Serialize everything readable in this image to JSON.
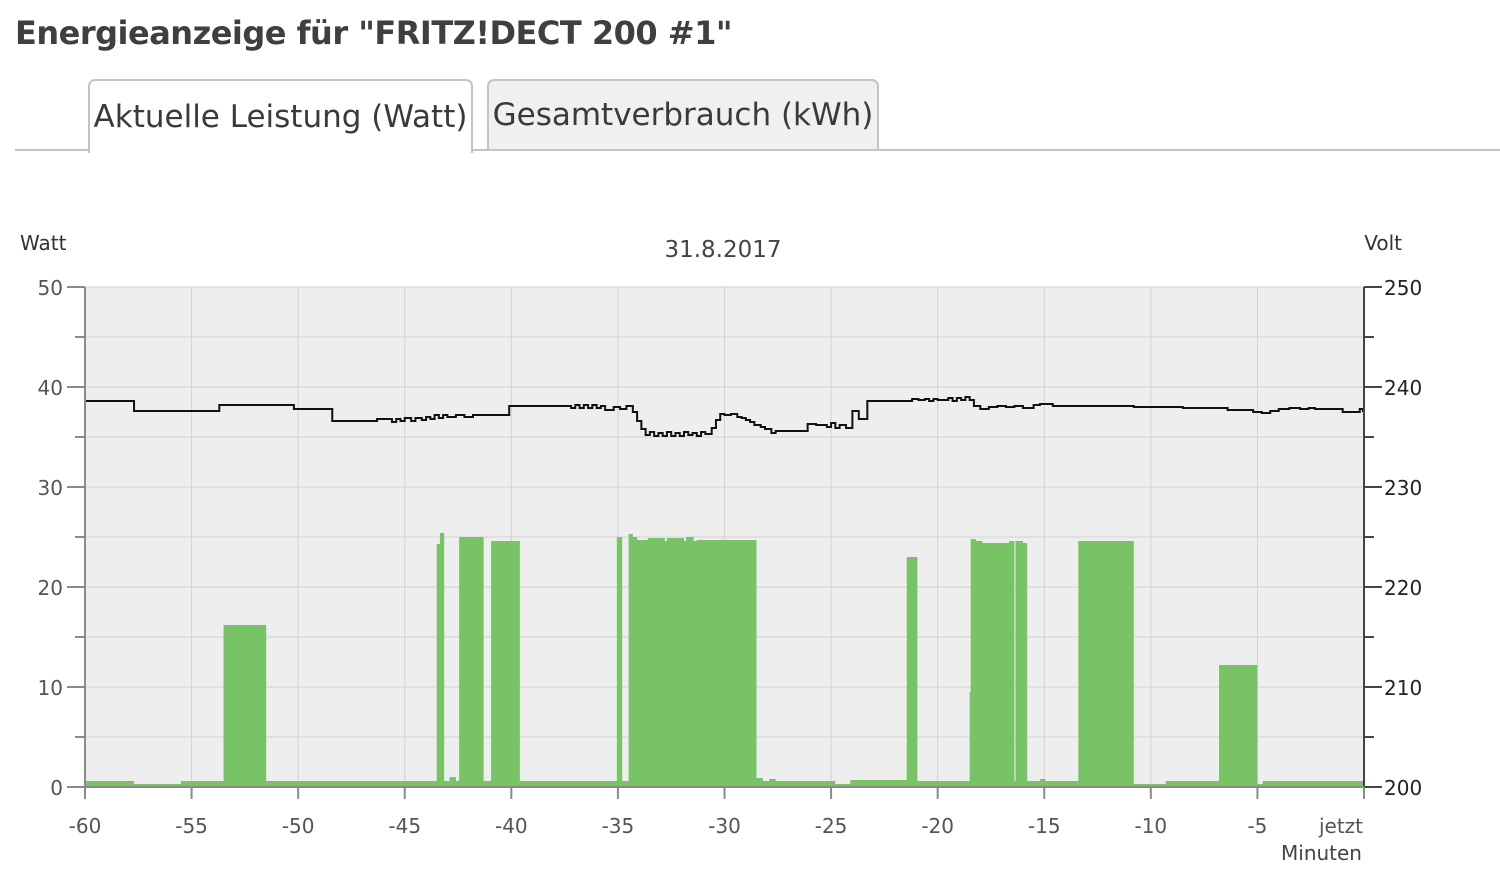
{
  "page": {
    "title": "Energieanzeige für \"FRITZ!DECT 200 #1\""
  },
  "tabs": [
    {
      "label": "Aktuelle Leistung (Watt)",
      "active": true
    },
    {
      "label": "Gesamtverbrauch (kWh)",
      "active": false
    }
  ],
  "colors": {
    "power_fill": "#77c366",
    "voltage_line": "#111111",
    "plot_bg": "#eeeeee",
    "grid": "#d2d2d2",
    "axis": "#8a8a8a"
  },
  "chart_data": {
    "type": "area",
    "title": "31.8.2017",
    "ylabel": "Watt",
    "y2label": "Volt",
    "xlabel": "Minuten",
    "xlim": [
      -60,
      0
    ],
    "ylim": [
      0,
      50
    ],
    "y2lim": [
      200,
      250
    ],
    "xticks": [
      -60,
      -55,
      -50,
      -45,
      -40,
      -35,
      -30,
      -25,
      -20,
      -15,
      -10,
      -5,
      0
    ],
    "xtick_labels": [
      "-60",
      "-55",
      "-50",
      "-45",
      "-40",
      "-35",
      "-30",
      "-25",
      "-20",
      "-15",
      "-10",
      "-5",
      "jetzt"
    ],
    "yticks": [
      0,
      10,
      20,
      30,
      40,
      50
    ],
    "y2ticks": [
      200,
      210,
      220,
      230,
      240,
      250
    ],
    "grid": true,
    "series": [
      {
        "name": "Watt",
        "axis": "left",
        "type": "area-step",
        "x": [
          -60,
          -57.7,
          -55.5,
          -53.5,
          -51.5,
          -43.5,
          -43.35,
          -43.15,
          -42.9,
          -42.6,
          -42.45,
          -41.3,
          -40.95,
          -39.6,
          -35.05,
          -34.8,
          -34.5,
          -34.3,
          -34.1,
          -33.6,
          -32.8,
          -32.7,
          -31.9,
          -31.8,
          -31.45,
          -31.3,
          -28.5,
          -28.2,
          -27.9,
          -27.6,
          -24.8,
          -24.1,
          -21.7,
          -21.45,
          -20.95,
          -18.5,
          -18.45,
          -18.2,
          -17.9,
          -16.65,
          -16.4,
          -16.35,
          -16.0,
          -15.8,
          -15.2,
          -14.95,
          -13.4,
          -10.8,
          -9.3,
          -6.8,
          -5.0,
          -4.75,
          0
        ],
        "values": [
          0.6,
          0.3,
          0.6,
          16.2,
          0.6,
          24.3,
          25.4,
          0.6,
          1.0,
          0.6,
          25.0,
          0.6,
          24.6,
          0.6,
          25.0,
          0.6,
          25.3,
          25.0,
          24.7,
          24.9,
          24.6,
          24.9,
          24.6,
          25.0,
          24.6,
          24.7,
          0.9,
          0.6,
          0.8,
          0.6,
          0.3,
          0.7,
          0.7,
          23.0,
          0.6,
          9.5,
          24.8,
          24.6,
          24.4,
          24.6,
          0.6,
          24.6,
          24.4,
          0.6,
          0.8,
          0.6,
          24.6,
          0.3,
          0.6,
          12.2,
          0.3,
          0.6,
          0.6
        ]
      },
      {
        "name": "Volt",
        "axis": "right",
        "type": "step-line",
        "x": [
          -60,
          -57.7,
          -53.7,
          -50.2,
          -48.4,
          -46.3,
          -45.6,
          -45.4,
          -45.2,
          -45.0,
          -44.7,
          -44.5,
          -44.2,
          -44.0,
          -43.8,
          -43.6,
          -43.4,
          -43.2,
          -43.0,
          -42.6,
          -42.2,
          -41.8,
          -40.1,
          -37.2,
          -37.0,
          -36.8,
          -36.6,
          -36.4,
          -36.2,
          -36.0,
          -35.8,
          -35.6,
          -35.2,
          -34.9,
          -34.6,
          -34.3,
          -34.1,
          -33.9,
          -33.7,
          -33.5,
          -33.3,
          -33.1,
          -32.9,
          -32.7,
          -32.5,
          -32.3,
          -32.1,
          -31.9,
          -31.7,
          -31.5,
          -31.3,
          -31.1,
          -30.9,
          -30.6,
          -30.4,
          -30.2,
          -30.0,
          -29.7,
          -29.4,
          -29.2,
          -29.0,
          -28.8,
          -28.6,
          -28.3,
          -28.1,
          -27.8,
          -27.6,
          -27.3,
          -26.1,
          -25.7,
          -25.2,
          -25.0,
          -24.8,
          -24.6,
          -24.3,
          -24.0,
          -23.7,
          -23.3,
          -23.1,
          -22.9,
          -22.7,
          -22.5,
          -22.2,
          -21.9,
          -21.5,
          -21.2,
          -20.9,
          -20.6,
          -20.4,
          -20.2,
          -20.0,
          -19.5,
          -19.3,
          -19.1,
          -18.9,
          -18.7,
          -18.5,
          -18.3,
          -18.0,
          -17.6,
          -17.2,
          -16.8,
          -16.4,
          -16.0,
          -15.5,
          -15.2,
          -14.6,
          -14.3,
          -10.8,
          -8.5,
          -6.4,
          -5.2,
          -4.8,
          -4.4,
          -4.0,
          -3.5,
          -3.0,
          -2.6,
          -2.3,
          -1.0,
          -0.2,
          -0.05,
          0
        ],
        "values": [
          238.6,
          237.6,
          238.2,
          237.8,
          236.6,
          236.8,
          236.5,
          236.8,
          236.6,
          236.9,
          236.6,
          236.9,
          236.7,
          237.0,
          236.8,
          237.2,
          236.9,
          237.2,
          237.0,
          237.2,
          237.0,
          237.2,
          238.1,
          237.9,
          238.2,
          237.9,
          238.2,
          237.9,
          238.2,
          237.9,
          238.1,
          237.7,
          238.0,
          237.8,
          238.1,
          237.5,
          236.6,
          235.8,
          235.2,
          235.5,
          235.1,
          235.4,
          235.1,
          235.5,
          235.1,
          235.4,
          235.1,
          235.5,
          235.2,
          235.4,
          235.1,
          235.5,
          235.3,
          235.9,
          236.7,
          237.3,
          237.2,
          237.3,
          237.0,
          236.9,
          236.7,
          236.5,
          236.2,
          236.0,
          235.8,
          235.4,
          235.6,
          235.6,
          236.3,
          236.2,
          236.0,
          236.4,
          235.9,
          236.2,
          235.9,
          237.6,
          236.8,
          238.6,
          238.6,
          238.6,
          238.6,
          238.6,
          238.6,
          238.6,
          238.6,
          238.8,
          238.7,
          238.8,
          238.6,
          238.8,
          238.7,
          238.9,
          238.6,
          238.9,
          238.7,
          239.0,
          238.7,
          238.1,
          237.8,
          238.0,
          238.1,
          238.0,
          238.1,
          237.9,
          238.2,
          238.3,
          238.1,
          238.1,
          238.0,
          237.9,
          237.7,
          237.5,
          237.4,
          237.6,
          237.8,
          237.9,
          237.8,
          237.9,
          237.8,
          237.5,
          237.8,
          237.6,
          237.6
        ]
      }
    ]
  }
}
